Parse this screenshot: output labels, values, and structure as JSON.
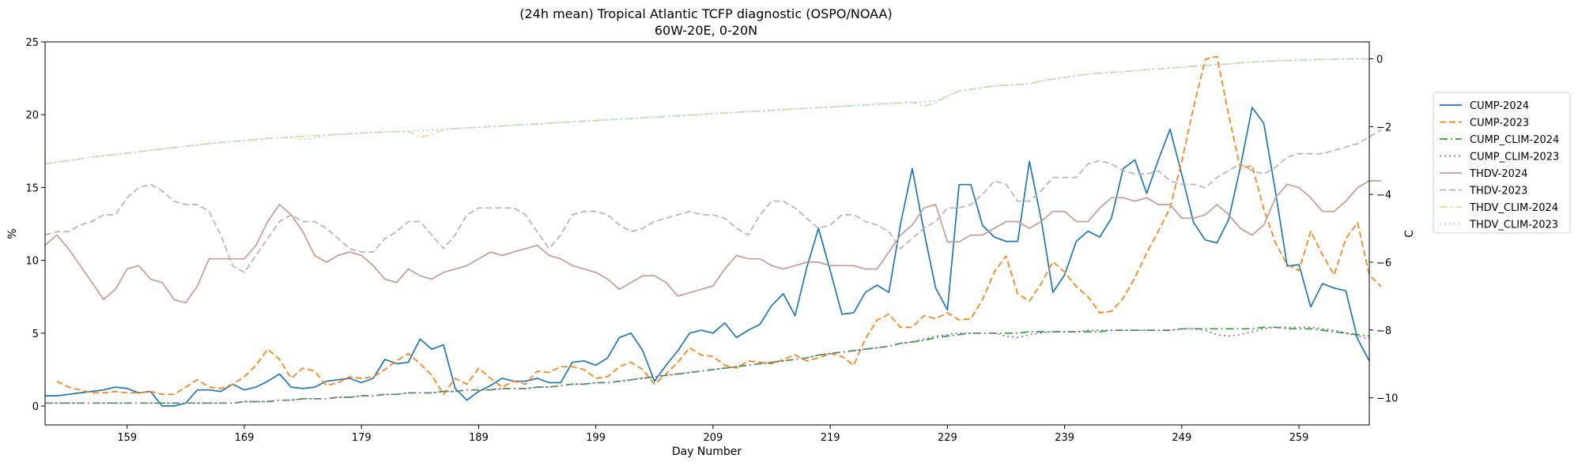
{
  "chart_data": {
    "type": "line",
    "title": "(24h mean) Tropical Atlantic TCFP diagnostic (OSPO/NOAA)",
    "subtitle": "60W-20E, 0-20N",
    "xlabel": "Day Number",
    "ylabel": "%",
    "y2label": "C",
    "xlim": [
      152,
      265
    ],
    "ylim": [
      -1.3,
      25
    ],
    "y2lim": [
      -10.8,
      0.5
    ],
    "xticks": [
      159,
      169,
      179,
      189,
      199,
      209,
      219,
      229,
      239,
      249,
      259
    ],
    "yticks": [
      0,
      5,
      10,
      15,
      20,
      25
    ],
    "y2ticks": [
      -10,
      -8,
      -6,
      -4,
      -2,
      0
    ],
    "grid": false,
    "legend_position": "outside-right",
    "x_start": 152,
    "series": [
      {
        "name": "CUMP-2024",
        "axis": "left",
        "color": "#1f77b4",
        "dash": "solid",
        "values": [
          0.7,
          0.7,
          0.8,
          0.9,
          1.0,
          1.1,
          1.3,
          1.2,
          0.9,
          1.0,
          0.0,
          0.0,
          0.2,
          1.1,
          1.1,
          1.0,
          1.5,
          1.1,
          1.3,
          1.7,
          2.2,
          1.3,
          1.2,
          1.3,
          1.7,
          1.8,
          1.9,
          1.6,
          1.9,
          3.2,
          2.9,
          3.0,
          4.6,
          3.9,
          4.2,
          1.2,
          0.4,
          1.0,
          1.4,
          1.9,
          1.7,
          1.7,
          1.9,
          1.6,
          1.6,
          3.0,
          3.1,
          2.8,
          3.3,
          4.7,
          5.0,
          3.8,
          1.7,
          2.8,
          3.8,
          5.0,
          5.2,
          5.0,
          5.7,
          4.7,
          5.2,
          5.6,
          6.9,
          7.7,
          6.2,
          9.5,
          12.2,
          9.3,
          6.3,
          6.4,
          7.8,
          8.3,
          7.8,
          12.5,
          16.3,
          12.0,
          8.1,
          6.6,
          15.2,
          15.2,
          12.4,
          11.6,
          11.3,
          11.3,
          16.8,
          12.8,
          7.8,
          9.0,
          11.3,
          12.0,
          11.6,
          12.9,
          16.3,
          16.9,
          14.6,
          16.9,
          19.0,
          15.9,
          12.6,
          11.4,
          11.2,
          12.8,
          16.4,
          20.5,
          19.4,
          14.7,
          9.6,
          9.7,
          6.8,
          8.4,
          8.1,
          7.9,
          4.6,
          3.1
        ]
      },
      {
        "name": "CUMP-2023",
        "axis": "left",
        "color": "#ff7f0e",
        "dash": "dashed",
        "values": [
          null,
          1.7,
          1.3,
          1.1,
          0.9,
          0.9,
          1.0,
          0.9,
          0.9,
          1.0,
          0.8,
          0.8,
          1.3,
          1.8,
          1.3,
          1.2,
          1.5,
          2.0,
          2.8,
          3.9,
          3.2,
          1.9,
          2.6,
          2.4,
          1.4,
          1.6,
          2.0,
          1.9,
          2.0,
          2.5,
          3.1,
          3.6,
          2.9,
          2.1,
          0.8,
          1.9,
          1.5,
          2.6,
          1.9,
          1.3,
          1.7,
          1.5,
          2.4,
          2.3,
          2.7,
          2.7,
          2.5,
          1.9,
          2.0,
          2.7,
          3.0,
          2.5,
          1.5,
          2.2,
          3.0,
          4.0,
          3.5,
          3.4,
          2.8,
          2.6,
          3.1,
          3.0,
          2.9,
          3.2,
          3.5,
          3.1,
          3.3,
          3.6,
          3.4,
          2.8,
          4.6,
          5.9,
          6.3,
          5.4,
          5.4,
          6.2,
          6.0,
          6.4,
          5.9,
          6.0,
          7.3,
          9.2,
          10.3,
          7.7,
          7.2,
          8.4,
          9.9,
          9.2,
          8.2,
          7.5,
          6.4,
          6.5,
          7.4,
          8.8,
          10.5,
          12.0,
          13.6,
          16.8,
          20.5,
          23.8,
          24.0,
          20.0,
          16.3,
          16.5,
          13.5,
          11.2,
          9.7,
          9.3,
          12.0,
          10.4,
          9.0,
          11.5,
          12.6,
          9.0,
          8.2
        ]
      },
      {
        "name": "CUMP_CLIM-2024",
        "axis": "left",
        "color": "#2ca02c",
        "dash": "dashdot",
        "values": [
          0.2,
          0.2,
          0.2,
          0.2,
          0.2,
          0.2,
          0.2,
          0.2,
          0.2,
          0.2,
          0.2,
          0.2,
          0.2,
          0.2,
          0.2,
          0.2,
          0.2,
          0.3,
          0.3,
          0.3,
          0.4,
          0.4,
          0.5,
          0.5,
          0.5,
          0.6,
          0.6,
          0.7,
          0.7,
          0.8,
          0.8,
          0.9,
          0.9,
          0.9,
          1.0,
          1.0,
          1.1,
          1.1,
          1.1,
          1.2,
          1.2,
          1.2,
          1.3,
          1.3,
          1.4,
          1.5,
          1.5,
          1.6,
          1.6,
          1.7,
          1.8,
          1.9,
          2.0,
          2.1,
          2.2,
          2.3,
          2.4,
          2.5,
          2.6,
          2.7,
          2.8,
          2.9,
          3.0,
          3.1,
          3.2,
          3.3,
          3.5,
          3.6,
          3.7,
          3.8,
          3.9,
          4.0,
          4.1,
          4.3,
          4.4,
          4.5,
          4.7,
          4.8,
          4.9,
          5.0,
          5.0,
          5.0,
          5.0,
          5.0,
          5.1,
          5.1,
          5.1,
          5.1,
          5.1,
          5.1,
          5.1,
          5.2,
          5.2,
          5.2,
          5.2,
          5.2,
          5.2,
          5.3,
          5.3,
          5.3,
          5.3,
          5.3,
          5.3,
          5.3,
          5.4,
          5.4,
          5.3,
          5.3,
          5.3,
          5.2,
          5.1,
          5.0,
          4.9,
          4.8
        ]
      },
      {
        "name": "CUMP_CLIM-2023",
        "axis": "left",
        "color": "#9467bd",
        "dash": "dotted",
        "values": [
          0.2,
          0.2,
          0.2,
          0.2,
          0.2,
          0.2,
          0.2,
          0.2,
          0.2,
          0.2,
          0.2,
          0.2,
          0.2,
          0.2,
          0.2,
          0.2,
          0.2,
          0.3,
          0.3,
          0.3,
          0.4,
          0.4,
          0.5,
          0.5,
          0.5,
          0.6,
          0.6,
          0.7,
          0.7,
          0.8,
          0.8,
          0.9,
          0.9,
          0.9,
          1.0,
          1.0,
          1.1,
          1.1,
          1.1,
          1.2,
          1.2,
          1.2,
          1.3,
          1.3,
          1.4,
          1.5,
          1.5,
          1.6,
          1.6,
          1.7,
          1.8,
          1.9,
          2.0,
          2.1,
          2.2,
          2.3,
          2.4,
          2.5,
          2.6,
          2.7,
          2.8,
          2.9,
          3.0,
          3.1,
          3.2,
          3.3,
          3.5,
          3.6,
          3.7,
          3.8,
          3.9,
          4.0,
          4.1,
          4.3,
          4.4,
          4.6,
          4.8,
          4.9,
          5.0,
          5.0,
          5.0,
          5.0,
          4.8,
          4.7,
          4.9,
          5.0,
          5.1,
          5.1,
          5.1,
          5.2,
          5.2,
          5.2,
          5.2,
          5.2,
          5.2,
          5.2,
          5.2,
          5.3,
          5.3,
          5.2,
          4.9,
          4.8,
          4.9,
          5.1,
          5.3,
          5.4,
          5.4,
          5.4,
          5.4,
          5.3,
          5.2,
          5.0,
          4.8,
          4.6
        ]
      },
      {
        "name": "THDV-2024",
        "axis": "right",
        "color": "#c49c94",
        "dash": "solid",
        "values": [
          -5.5,
          -5.2,
          -5.6,
          -6.1,
          -6.6,
          -7.1,
          -6.8,
          -6.2,
          -6.1,
          -6.5,
          -6.6,
          -7.1,
          -7.2,
          -6.7,
          -5.9,
          -5.9,
          -5.9,
          -5.9,
          -5.5,
          -4.8,
          -4.3,
          -4.6,
          -5.1,
          -5.8,
          -6.0,
          -5.8,
          -5.7,
          -5.8,
          -6.1,
          -6.5,
          -6.6,
          -6.2,
          -6.4,
          -6.5,
          -6.3,
          -6.2,
          -6.1,
          -5.9,
          -5.7,
          -5.8,
          -5.7,
          -5.6,
          -5.5,
          -5.8,
          -5.9,
          -6.1,
          -6.2,
          -6.3,
          -6.5,
          -6.8,
          -6.6,
          -6.4,
          -6.4,
          -6.6,
          -7.0,
          -6.9,
          -6.8,
          -6.7,
          -6.2,
          -5.8,
          -5.9,
          -5.9,
          -6.1,
          -6.2,
          -6.1,
          -6.0,
          -6.0,
          -6.1,
          -6.1,
          -6.1,
          -6.2,
          -6.2,
          -5.7,
          -5.2,
          -4.9,
          -4.4,
          -4.3,
          -5.4,
          -5.4,
          -5.2,
          -5.2,
          -5.0,
          -4.8,
          -4.8,
          -5.0,
          -4.8,
          -4.5,
          -4.5,
          -4.8,
          -4.8,
          -4.4,
          -4.1,
          -4.1,
          -4.2,
          -4.1,
          -4.3,
          -4.3,
          -4.7,
          -4.7,
          -4.6,
          -4.3,
          -4.6,
          -5.0,
          -5.2,
          -4.9,
          -4.1,
          -3.7,
          -3.8,
          -4.1,
          -4.5,
          -4.5,
          -4.2,
          -3.8,
          -3.6,
          -3.6
        ]
      },
      {
        "name": "THDV-2023",
        "axis": "right",
        "color": "#b5b5b5",
        "dash": "dashed",
        "values": [
          -5.2,
          -5.1,
          -5.1,
          -4.9,
          -4.8,
          -4.6,
          -4.6,
          -4.1,
          -3.8,
          -3.7,
          -3.9,
          -4.2,
          -4.3,
          -4.3,
          -4.5,
          -5.2,
          -6.1,
          -6.3,
          -5.8,
          -5.3,
          -4.8,
          -4.6,
          -4.8,
          -4.8,
          -5.0,
          -5.3,
          -5.6,
          -5.7,
          -5.7,
          -5.3,
          -5.1,
          -4.8,
          -4.8,
          -5.2,
          -5.6,
          -5.2,
          -4.6,
          -4.4,
          -4.4,
          -4.4,
          -4.4,
          -4.6,
          -5.1,
          -5.6,
          -5.2,
          -4.6,
          -4.5,
          -4.5,
          -4.6,
          -4.9,
          -5.1,
          -5.0,
          -4.8,
          -4.7,
          -4.6,
          -4.5,
          -4.6,
          -4.6,
          -4.7,
          -5.0,
          -5.2,
          -4.6,
          -4.2,
          -4.2,
          -4.4,
          -4.7,
          -5.0,
          -4.9,
          -4.6,
          -4.6,
          -4.8,
          -4.9,
          -5.1,
          -5.6,
          -5.3,
          -5.0,
          -4.8,
          -4.4,
          -4.4,
          -4.3,
          -4.0,
          -3.6,
          -3.7,
          -4.2,
          -4.2,
          -3.9,
          -3.5,
          -3.5,
          -3.5,
          -3.1,
          -3.0,
          -3.1,
          -3.3,
          -3.4,
          -3.4,
          -3.3,
          -3.6,
          -3.7,
          -3.7,
          -3.8,
          -3.5,
          -3.3,
          -3.1,
          -3.3,
          -3.4,
          -3.2,
          -2.9,
          -2.8,
          -2.8,
          -2.8,
          -2.7,
          -2.6,
          -2.5,
          -2.3,
          -2.1
        ]
      },
      {
        "name": "THDV_CLIM-2024",
        "axis": "right",
        "color": "#dbdb8d",
        "dash": "dashdot",
        "values": [
          -3.1,
          -3.05,
          -3.0,
          -2.95,
          -2.9,
          -2.86,
          -2.82,
          -2.78,
          -2.74,
          -2.7,
          -2.66,
          -2.62,
          -2.58,
          -2.54,
          -2.5,
          -2.47,
          -2.44,
          -2.41,
          -2.38,
          -2.35,
          -2.33,
          -2.31,
          -2.29,
          -2.27,
          -2.25,
          -2.23,
          -2.21,
          -2.19,
          -2.17,
          -2.16,
          -2.15,
          -2.14,
          -2.3,
          -2.25,
          -2.08,
          -2.06,
          -2.04,
          -2.02,
          -2.0,
          -1.98,
          -1.96,
          -1.94,
          -1.92,
          -1.9,
          -1.88,
          -1.86,
          -1.84,
          -1.82,
          -1.8,
          -1.78,
          -1.76,
          -1.74,
          -1.72,
          -1.7,
          -1.68,
          -1.66,
          -1.64,
          -1.62,
          -1.6,
          -1.58,
          -1.56,
          -1.54,
          -1.52,
          -1.5,
          -1.48,
          -1.46,
          -1.44,
          -1.42,
          -1.4,
          -1.38,
          -1.36,
          -1.34,
          -1.32,
          -1.3,
          -1.28,
          -1.4,
          -1.3,
          -1.1,
          -0.95,
          -0.9,
          -0.85,
          -0.8,
          -0.78,
          -0.76,
          -0.74,
          -0.65,
          -0.6,
          -0.55,
          -0.5,
          -0.45,
          -0.42,
          -0.4,
          -0.38,
          -0.35,
          -0.32,
          -0.3,
          -0.27,
          -0.25,
          -0.22,
          -0.2,
          -0.17,
          -0.15,
          -0.12,
          -0.1,
          -0.08,
          -0.06,
          -0.05,
          -0.04,
          -0.03,
          -0.02,
          -0.01,
          0.0,
          0.0,
          0.0
        ]
      },
      {
        "name": "THDV_CLIM-2023",
        "axis": "right",
        "color": "#9edae5",
        "dash": "dotted",
        "values": [
          -3.1,
          -3.05,
          -3.0,
          -2.95,
          -2.9,
          -2.86,
          -2.82,
          -2.78,
          -2.74,
          -2.7,
          -2.66,
          -2.62,
          -2.58,
          -2.54,
          -2.5,
          -2.47,
          -2.44,
          -2.41,
          -2.38,
          -2.35,
          -2.33,
          -2.31,
          -2.38,
          -2.35,
          -2.25,
          -2.23,
          -2.21,
          -2.19,
          -2.17,
          -2.16,
          -2.15,
          -2.14,
          -2.12,
          -2.1,
          -2.08,
          -2.06,
          -2.04,
          -2.02,
          -2.0,
          -1.98,
          -1.96,
          -1.94,
          -1.92,
          -1.9,
          -1.88,
          -1.86,
          -1.84,
          -1.82,
          -1.8,
          -1.78,
          -1.76,
          -1.74,
          -1.72,
          -1.7,
          -1.68,
          -1.66,
          -1.64,
          -1.62,
          -1.6,
          -1.58,
          -1.56,
          -1.54,
          -1.52,
          -1.5,
          -1.48,
          -1.46,
          -1.44,
          -1.42,
          -1.4,
          -1.38,
          -1.36,
          -1.34,
          -1.32,
          -1.3,
          -1.28,
          -1.26,
          -1.24,
          -1.1,
          -0.95,
          -0.9,
          -0.85,
          -0.8,
          -0.78,
          -0.76,
          -0.74,
          -0.65,
          -0.6,
          -0.55,
          -0.5,
          -0.45,
          -0.42,
          -0.4,
          -0.38,
          -0.35,
          -0.32,
          -0.3,
          -0.27,
          -0.25,
          -0.22,
          -0.2,
          -0.17,
          -0.15,
          -0.12,
          -0.1,
          -0.08,
          -0.06,
          -0.05,
          -0.04,
          -0.03,
          -0.02,
          -0.01,
          0.0,
          0.0,
          0.0
        ]
      }
    ]
  }
}
